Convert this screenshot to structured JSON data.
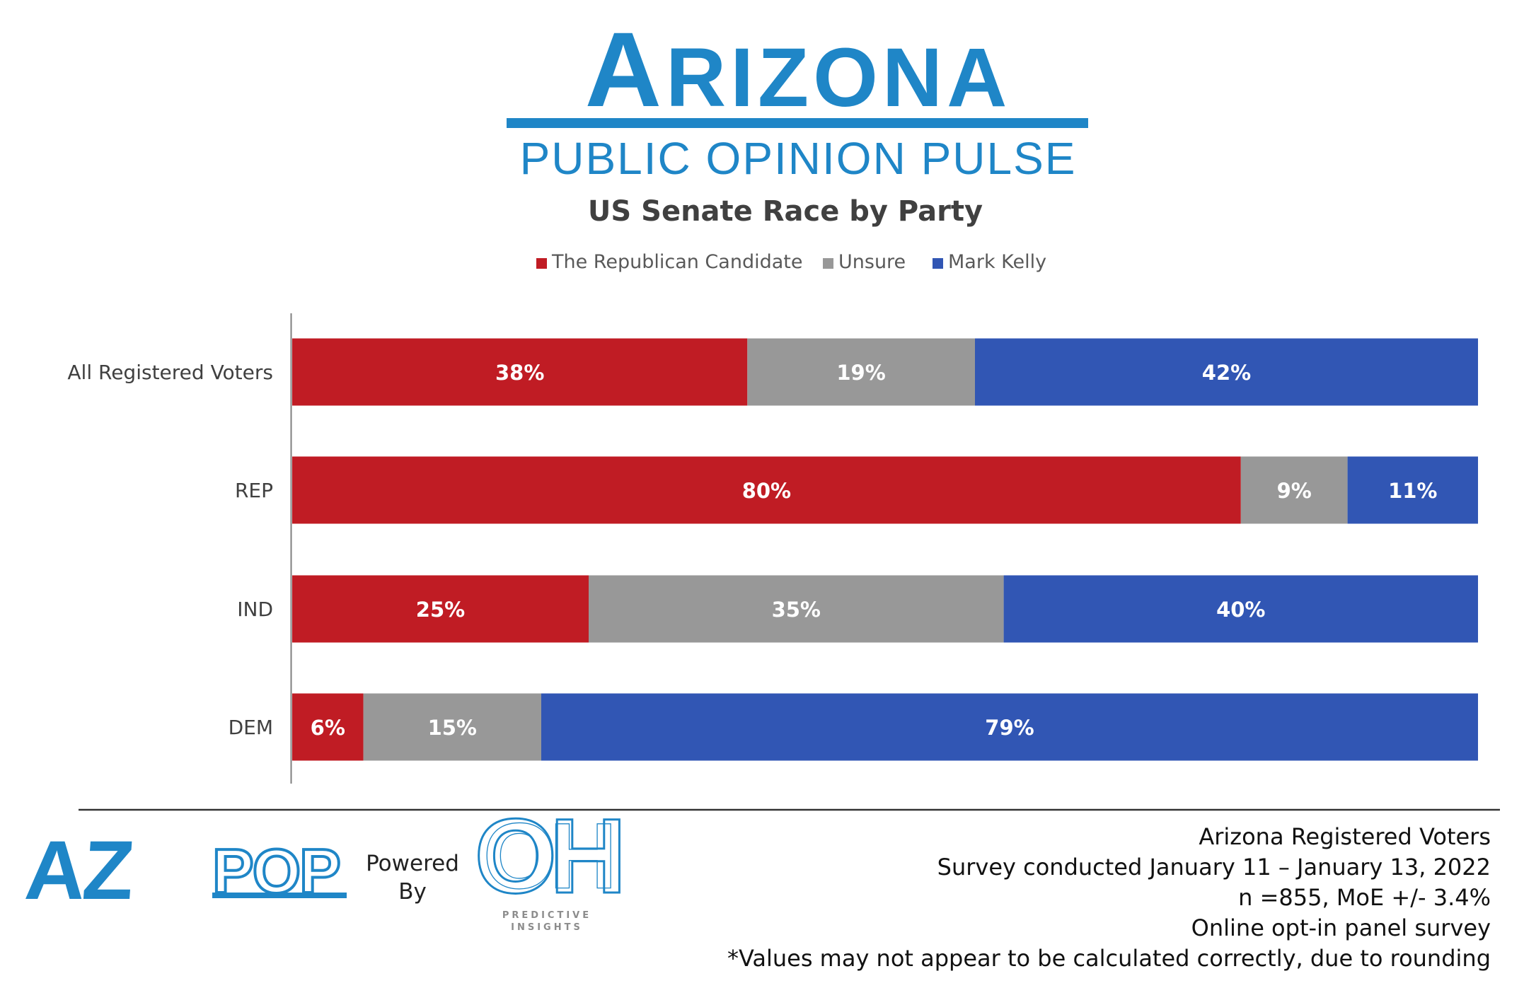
{
  "brand": {
    "name": "Arizona",
    "subtitle": "PUBLIC OPINION PULSE",
    "color": "#1f86c7"
  },
  "chart_data": {
    "type": "bar",
    "orientation": "horizontal",
    "stacked": "percent",
    "title": "US Senate Race by Party",
    "categories": [
      "All Registered Voters",
      "REP",
      "IND",
      "DEM"
    ],
    "series": [
      {
        "name": "The Republican Candidate",
        "color": "#c01c24",
        "values": [
          38,
          80,
          25,
          6
        ]
      },
      {
        "name": "Unsure",
        "color": "#989898",
        "values": [
          19,
          9,
          35,
          15
        ]
      },
      {
        "name": "Mark Kelly",
        "color": "#3156b4",
        "values": [
          42,
          11,
          40,
          79
        ]
      }
    ],
    "value_format": "{v}%",
    "legend_position": "top",
    "grid": false,
    "xlabel": "",
    "ylabel": ""
  },
  "footer": {
    "logo": {
      "az": "AZ",
      "pop": "POP",
      "color": "#1f86c7"
    },
    "powered_by": [
      "Powered",
      "By"
    ],
    "partner_logo": {
      "mark": "OH",
      "caption": [
        "PREDICTIVE",
        "INSIGHTS"
      ],
      "color": "#1f86c7"
    },
    "notes": [
      "Arizona Registered Voters",
      "Survey conducted January 11 – January 13, 2022",
      "n =855, MoE +/- 3.4%",
      "Online opt-in panel survey",
      "*Values may not appear to be calculated correctly, due to rounding"
    ]
  }
}
